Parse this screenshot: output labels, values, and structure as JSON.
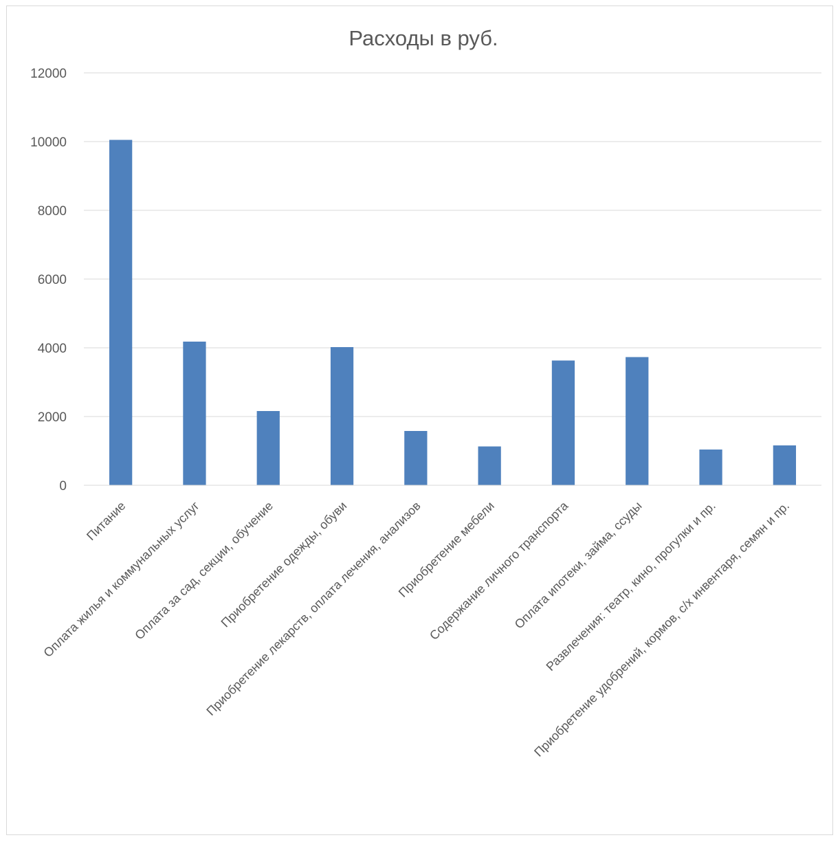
{
  "chart_data": {
    "type": "bar",
    "title": "Расходы в руб.",
    "xlabel": "",
    "ylabel": "",
    "ylim": [
      0,
      12000
    ],
    "yticks": [
      0,
      2000,
      4000,
      6000,
      8000,
      10000,
      12000
    ],
    "grid": true,
    "legend": "none",
    "bar_color": "#4F81BD",
    "categories": [
      "Питание",
      "Оплата жилья и коммунальных услуг",
      "Оплата за сад, секции, обучение",
      "Приобретение одежды, обуви",
      "Приобретение лекарств, оплата лечения, анализов",
      "Приобретение мебели",
      "Содержание личного транспорта",
      "Оплата ипотеки, займа, ссуды",
      "Развлечения: театр, кино, прогулки и пр.",
      "Приобретение удобрений, кормов, с/х инвентаря, семян и пр."
    ],
    "values": [
      10050,
      4180,
      2160,
      4020,
      1580,
      1130,
      3630,
      3730,
      1040,
      1160
    ]
  }
}
